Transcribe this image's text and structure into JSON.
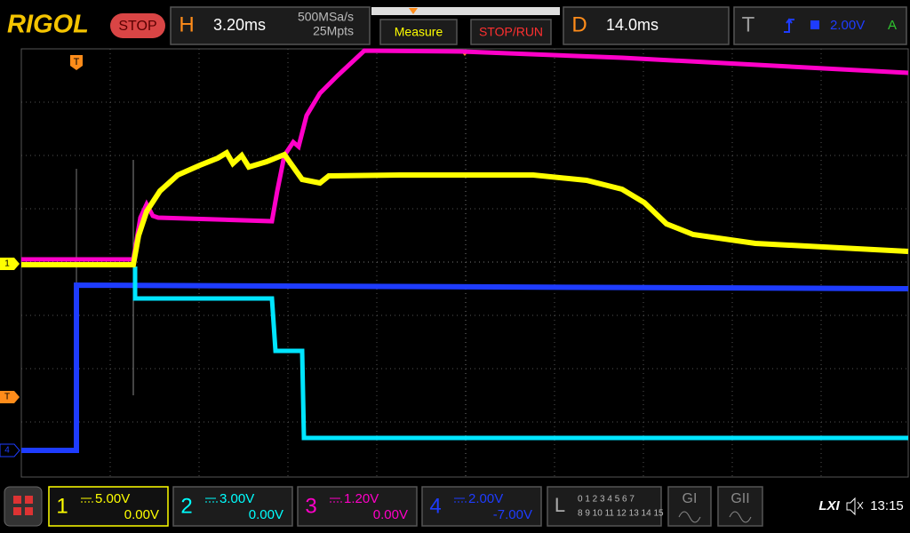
{
  "header": {
    "brand": "RIGOL",
    "status": "STOP",
    "horizontal": {
      "label": "H",
      "timebase": "3.20ms",
      "sample_rate": "500MSa/s",
      "memory_depth": "25Mpts"
    },
    "buttons": [
      "Measure",
      "STOP/RUN"
    ],
    "delay": {
      "label": "D",
      "value": "14.0ms"
    },
    "trigger": {
      "label": "T",
      "level": "2.00V",
      "mode": "A"
    }
  },
  "markers": {
    "ch1": "1",
    "trigger_position": "T",
    "trigger_level": "T",
    "ch4": "4"
  },
  "channels": [
    {
      "number": "1",
      "scale": "5.00V",
      "offset": "0.00V",
      "color": "#ffff00"
    },
    {
      "number": "2",
      "scale": "3.00V",
      "offset": "0.00V",
      "color": "#00ffff"
    },
    {
      "number": "3",
      "scale": "1.20V",
      "offset": "0.00V",
      "color": "#ff00c8"
    },
    {
      "number": "4",
      "scale": "2.00V",
      "offset": "-7.00V",
      "color": "#1e3cff"
    }
  ],
  "logic": {
    "label": "L",
    "row1": "0 1 2 3  4 5 6 7",
    "row2": "8 9 10 11 12 13 14 15"
  },
  "generators": [
    "GI",
    "GII"
  ],
  "status_bar": {
    "lxi": "LXI",
    "time": "13:15"
  }
}
